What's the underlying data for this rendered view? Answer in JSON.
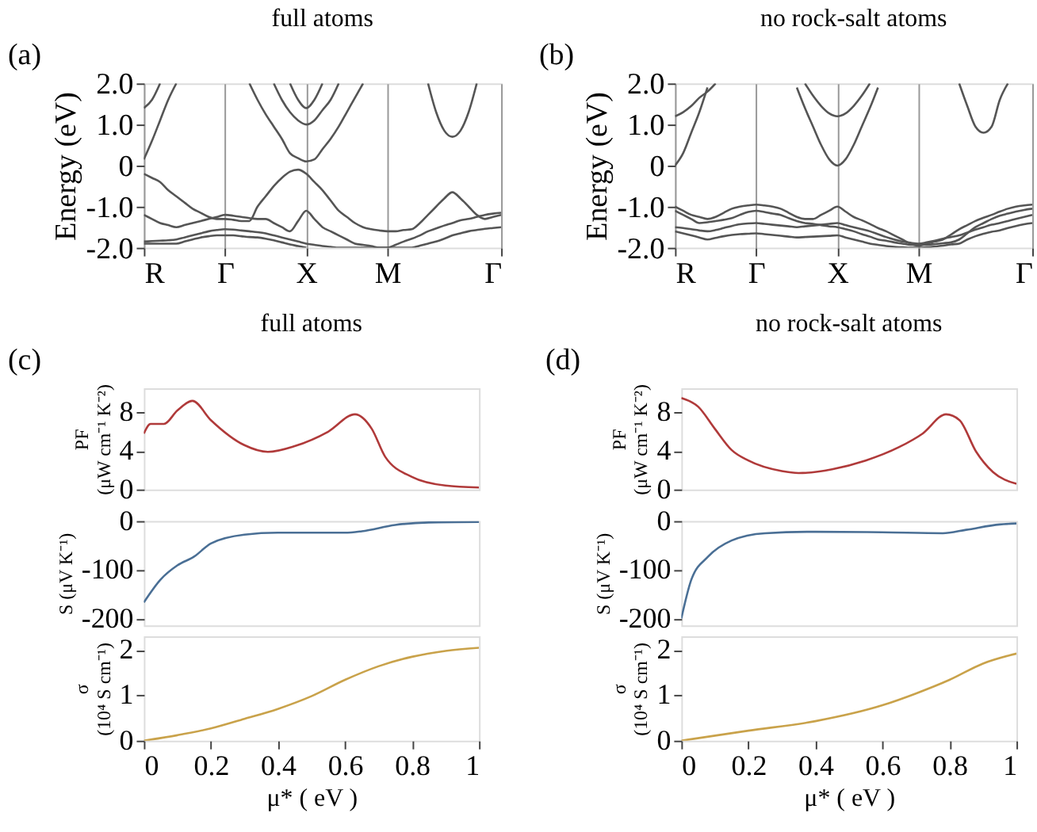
{
  "chart_data": [
    {
      "type": "line",
      "title": "full atoms",
      "ylabel": "Energy (eV)",
      "annotations": [
        "(a)"
      ],
      "grid": "x",
      "categories": [
        "R",
        null,
        null,
        null,
        null,
        null,
        null,
        null,
        null,
        null,
        "Γ",
        null,
        null,
        null,
        null,
        null,
        null,
        null,
        null,
        null,
        "X",
        null,
        null,
        null,
        null,
        null,
        null,
        null,
        null,
        null,
        "M",
        null,
        null,
        null,
        null,
        null,
        null,
        null,
        null,
        null,
        null,
        null,
        null,
        null,
        "Γ"
      ],
      "ylim": [
        -2,
        2
      ],
      "yticks": [
        {
          "value": 2,
          "label": "2.0"
        },
        {
          "value": 1,
          "label": "1.0"
        },
        0,
        {
          "value": -1,
          "label": "-1.0"
        },
        {
          "value": -2,
          "label": "-2.0"
        }
      ],
      "series": [
        {
          "color": "#555555",
          "values": [
            0.15,
            0.6,
            1.1,
            1.6,
            2.0,
            null,
            null,
            null,
            null,
            null,
            null,
            null,
            null,
            null,
            null,
            null,
            null,
            null,
            null,
            null,
            null,
            null,
            null,
            null,
            null,
            null,
            null,
            null,
            null,
            null,
            null,
            null,
            null,
            null,
            null,
            null,
            null,
            null,
            null,
            null,
            null,
            null,
            null,
            null,
            null
          ]
        },
        {
          "color": "#555555",
          "values": [
            1.4,
            1.6,
            2.0,
            null,
            null,
            null,
            null,
            null,
            null,
            null,
            null,
            null,
            null,
            null,
            null,
            null,
            null,
            null,
            null,
            null,
            null,
            null,
            null,
            null,
            null,
            null,
            null,
            null,
            null,
            null,
            null,
            null,
            null,
            null,
            null,
            null,
            null,
            null,
            null,
            null,
            null,
            null,
            null,
            null,
            null
          ]
        },
        {
          "color": "#555555",
          "values": [
            null,
            null,
            null,
            null,
            null,
            null,
            null,
            null,
            null,
            null,
            null,
            null,
            null,
            2.0,
            1.6,
            1.25,
            0.95,
            0.65,
            0.3,
            0.18,
            0.1,
            0.15,
            0.4,
            0.65,
            0.95,
            1.3,
            1.65,
            2.0,
            null,
            null,
            null,
            null,
            null,
            null,
            null,
            null,
            null,
            null,
            null,
            null,
            null,
            null,
            null,
            null,
            null
          ]
        },
        {
          "color": "#555555",
          "values": [
            null,
            null,
            null,
            null,
            null,
            null,
            null,
            null,
            null,
            null,
            null,
            null,
            null,
            null,
            null,
            null,
            2.0,
            1.6,
            1.3,
            1.1,
            1.0,
            1.1,
            1.35,
            1.6,
            2.0,
            null,
            null,
            null,
            null,
            null,
            null,
            null,
            null,
            null,
            null,
            null,
            null,
            null,
            null,
            null,
            null,
            null,
            null,
            null,
            null
          ]
        },
        {
          "color": "#555555",
          "values": [
            null,
            null,
            null,
            null,
            null,
            null,
            null,
            null,
            null,
            null,
            null,
            null,
            null,
            null,
            null,
            null,
            null,
            null,
            2.0,
            1.6,
            1.4,
            1.6,
            2.0,
            null,
            null,
            null,
            null,
            null,
            null,
            null,
            null,
            null,
            null,
            null,
            null,
            null,
            null,
            null,
            null,
            null,
            null,
            null,
            null,
            null,
            null
          ]
        },
        {
          "color": "#555555",
          "values": [
            null,
            null,
            null,
            null,
            null,
            null,
            null,
            null,
            null,
            null,
            null,
            null,
            null,
            null,
            null,
            null,
            null,
            null,
            null,
            null,
            null,
            null,
            null,
            null,
            null,
            null,
            null,
            null,
            null,
            null,
            null,
            null,
            null,
            null,
            null,
            2.0,
            1.3,
            0.85,
            0.7,
            0.85,
            1.3,
            2.0,
            null,
            null,
            null
          ]
        },
        {
          "color": "#555555",
          "values": [
            -0.2,
            -0.3,
            -0.4,
            -0.6,
            -0.75,
            -0.9,
            -1.05,
            -1.15,
            -1.25,
            -1.3,
            -1.3,
            -1.32,
            -1.35,
            -1.35,
            -1.0,
            -0.75,
            -0.5,
            -0.3,
            -0.15,
            -0.1,
            -0.2,
            -0.4,
            -0.6,
            -0.85,
            -1.1,
            -1.25,
            -1.4,
            -1.5,
            -1.55,
            -1.58,
            -1.6,
            -1.6,
            -1.57,
            -1.55,
            -1.4,
            -1.2,
            -1.0,
            -0.8,
            -0.65,
            -0.8,
            -1.0,
            -1.2,
            -1.3,
            -1.25,
            -1.2
          ]
        },
        {
          "color": "#555555",
          "values": [
            -1.2,
            -1.3,
            -1.4,
            -1.45,
            -1.5,
            -1.45,
            -1.4,
            -1.35,
            -1.3,
            -1.25,
            -1.2,
            -1.22,
            -1.25,
            -1.28,
            -1.3,
            -1.3,
            -1.4,
            -1.5,
            -1.6,
            -1.35,
            -1.1,
            -1.3,
            -1.5,
            -1.6,
            -1.7,
            -1.8,
            -1.9,
            -1.93,
            -1.96,
            -2.0,
            -2.0,
            -1.93,
            -1.85,
            -1.78,
            -1.7,
            -1.6,
            -1.53,
            -1.46,
            -1.4,
            -1.33,
            -1.3,
            -1.25,
            -1.2,
            -1.17,
            -1.15
          ]
        },
        {
          "color": "#555555",
          "values": [
            -1.85,
            -1.84,
            -1.83,
            -1.82,
            -1.8,
            -1.75,
            -1.7,
            -1.65,
            -1.6,
            -1.57,
            -1.55,
            -1.56,
            -1.58,
            -1.6,
            -1.62,
            -1.65,
            -1.7,
            -1.75,
            -1.8,
            -1.85,
            -1.9,
            -1.93,
            -1.96,
            -1.98,
            -2.0,
            -2.0,
            -2.0,
            -2.0,
            -2.0,
            -2.0,
            -2.0,
            -2.0,
            -2.0,
            -2.0,
            -1.95,
            -1.9,
            -1.85,
            -1.78,
            -1.7,
            -1.65,
            -1.6,
            -1.57,
            -1.54,
            -1.52,
            -1.5
          ]
        },
        {
          "color": "#555555",
          "values": [
            -1.9,
            -1.9,
            -1.9,
            -1.9,
            -1.9,
            -1.85,
            -1.8,
            -1.75,
            -1.72,
            -1.7,
            -1.7,
            -1.7,
            -1.72,
            -1.74,
            -1.75,
            -1.78,
            -1.82,
            -1.87,
            -1.92,
            -1.96,
            -2.0,
            null,
            null,
            null,
            null,
            null,
            null,
            null,
            null,
            null,
            null,
            null,
            null,
            null,
            null,
            null,
            null,
            null,
            null,
            null,
            null,
            null,
            null,
            null,
            null
          ]
        }
      ]
    },
    {
      "type": "line",
      "title": "no rock-salt atoms",
      "ylabel": "Energy (eV)",
      "annotations": [
        "(b)"
      ],
      "grid": "x",
      "categories": [
        "R",
        null,
        null,
        null,
        null,
        null,
        null,
        null,
        null,
        null,
        "Γ",
        null,
        null,
        null,
        null,
        null,
        null,
        null,
        null,
        null,
        "X",
        null,
        null,
        null,
        null,
        null,
        null,
        null,
        null,
        null,
        "M",
        null,
        null,
        null,
        null,
        null,
        null,
        null,
        null,
        null,
        null,
        null,
        null,
        null,
        "Γ"
      ],
      "ylim": [
        -2,
        2
      ],
      "yticks": [
        {
          "value": 2,
          "label": "2.0"
        },
        {
          "value": 1,
          "label": "1.0"
        },
        0,
        {
          "value": -1,
          "label": "-1.0"
        },
        {
          "value": -2,
          "label": "-2.0"
        }
      ],
      "series": [
        {
          "color": "#555555",
          "values": [
            1.2,
            1.3,
            1.45,
            1.65,
            1.8,
            2.0,
            null,
            null,
            null,
            null,
            null,
            null,
            null,
            null,
            null,
            null,
            null,
            null,
            null,
            null,
            null,
            null,
            null,
            null,
            null,
            null,
            null,
            null,
            null,
            null,
            null,
            null,
            null,
            null,
            null,
            null,
            null,
            null,
            null,
            null,
            null,
            null,
            null,
            null,
            null
          ]
        },
        {
          "color": "#555555",
          "values": [
            0,
            0.3,
            0.8,
            1.3,
            1.9,
            null,
            null,
            null,
            null,
            null,
            null,
            null,
            null,
            null,
            null,
            null,
            null,
            null,
            null,
            null,
            null,
            null,
            null,
            null,
            null,
            null,
            null,
            null,
            null,
            null,
            null,
            null,
            null,
            null,
            null,
            null,
            null,
            null,
            null,
            null,
            null,
            null,
            null,
            null,
            null
          ]
        },
        {
          "color": "#555555",
          "values": [
            null,
            null,
            null,
            null,
            null,
            null,
            null,
            null,
            null,
            null,
            null,
            null,
            null,
            null,
            null,
            1.9,
            1.4,
            0.95,
            0.5,
            0.15,
            0.0,
            0.15,
            0.5,
            0.95,
            1.4,
            1.9,
            null,
            null,
            null,
            null,
            null,
            null,
            null,
            null,
            null,
            null,
            null,
            null,
            null,
            null,
            null,
            null,
            null,
            null,
            null
          ]
        },
        {
          "color": "#555555",
          "values": [
            null,
            null,
            null,
            null,
            null,
            null,
            null,
            null,
            null,
            null,
            null,
            null,
            null,
            null,
            null,
            null,
            2.0,
            1.7,
            1.45,
            1.27,
            1.2,
            1.27,
            1.45,
            1.7,
            2.0,
            null,
            null,
            null,
            null,
            null,
            null,
            null,
            null,
            null,
            null,
            null,
            null,
            null,
            null,
            null,
            null,
            null,
            null,
            null,
            null
          ]
        },
        {
          "color": "#555555",
          "values": [
            null,
            null,
            null,
            null,
            null,
            null,
            null,
            null,
            null,
            null,
            null,
            null,
            null,
            null,
            null,
            null,
            null,
            null,
            null,
            null,
            null,
            null,
            null,
            null,
            null,
            null,
            null,
            null,
            null,
            null,
            null,
            null,
            null,
            null,
            null,
            2.0,
            1.45,
            0.95,
            0.8,
            0.95,
            1.6,
            2.0,
            null,
            null,
            null
          ]
        },
        {
          "color": "#555555",
          "values": [
            -1.0,
            -1.1,
            -1.2,
            -1.25,
            -1.3,
            -1.25,
            -1.15,
            -1.05,
            -1.0,
            -0.97,
            -0.95,
            -0.97,
            -1.0,
            -1.05,
            -1.15,
            -1.25,
            -1.3,
            -1.3,
            -1.2,
            -1.1,
            -1.0,
            -1.12,
            -1.25,
            -1.33,
            -1.42,
            -1.52,
            -1.6,
            -1.7,
            -1.8,
            -1.9,
            -1.95,
            -1.9,
            -1.85,
            -1.8,
            -1.68,
            -1.55,
            -1.45,
            -1.35,
            -1.27,
            -1.2,
            -1.12,
            -1.05,
            -1.0,
            -0.97,
            -0.95
          ]
        },
        {
          "color": "#555555",
          "values": [
            -1.1,
            -1.2,
            -1.3,
            -1.4,
            -1.38,
            -1.35,
            -1.32,
            -1.28,
            -1.2,
            -1.13,
            -1.1,
            -1.13,
            -1.17,
            -1.2,
            -1.28,
            -1.35,
            -1.4,
            -1.42,
            -1.45,
            -1.48,
            -1.5,
            -1.55,
            -1.6,
            -1.67,
            -1.73,
            -1.8,
            -1.83,
            -1.87,
            -1.9,
            -1.93,
            -1.93,
            -1.93,
            -1.91,
            -1.89,
            -1.87,
            -1.8,
            -1.65,
            -1.5,
            -1.4,
            -1.3,
            -1.22,
            -1.17,
            -1.12,
            -1.08,
            -1.05
          ]
        },
        {
          "color": "#555555",
          "values": [
            -1.5,
            -1.52,
            -1.55,
            -1.58,
            -1.6,
            -1.57,
            -1.52,
            -1.47,
            -1.43,
            -1.41,
            -1.4,
            -1.42,
            -1.44,
            -1.46,
            -1.48,
            -1.5,
            -1.48,
            -1.46,
            -1.44,
            -1.42,
            -1.4,
            -1.45,
            -1.5,
            -1.55,
            -1.6,
            -1.67,
            -1.74,
            -1.8,
            -1.85,
            -1.88,
            -1.9,
            -1.87,
            -1.83,
            -1.78,
            -1.74,
            -1.7,
            -1.63,
            -1.56,
            -1.5,
            -1.44,
            -1.4,
            -1.35,
            -1.3,
            -1.25,
            -1.2
          ]
        },
        {
          "color": "#555555",
          "values": [
            -1.6,
            -1.65,
            -1.7,
            -1.75,
            -1.8,
            -1.76,
            -1.72,
            -1.69,
            -1.67,
            -1.66,
            -1.65,
            -1.67,
            -1.69,
            -1.71,
            -1.73,
            -1.75,
            -1.74,
            -1.73,
            -1.72,
            -1.71,
            -1.7,
            -1.75,
            -1.8,
            -1.85,
            -1.9,
            -1.93,
            -1.96,
            -1.98,
            -1.99,
            -2.0,
            -2.0,
            -1.99,
            -1.97,
            -1.95,
            -1.92,
            -1.9,
            -1.8,
            -1.72,
            -1.66,
            -1.61,
            -1.58,
            -1.52,
            -1.47,
            -1.43,
            -1.4
          ]
        }
      ]
    },
    {
      "type": "line",
      "title": "full atoms",
      "ylabel": "PF\n(μW cm⁻¹ K⁻²)",
      "annotations": [
        "(c)"
      ],
      "tick_labels": "y",
      "xlim": [
        0,
        1
      ],
      "ylim": [
        0,
        10.5
      ],
      "yticks": [
        0,
        4,
        8
      ],
      "series": [
        {
          "color": "#b03a3a",
          "x": [
            0,
            0.02,
            0.06,
            0.1,
            0.145,
            0.2,
            0.3,
            0.37,
            0.45,
            0.55,
            0.63,
            0.68,
            0.72,
            0.8,
            0.9,
            1.0
          ],
          "values": [
            5.8,
            6.8,
            6.8,
            8.2,
            9.2,
            7.2,
            4.6,
            3.9,
            4.5,
            6.0,
            7.8,
            6.3,
            3.4,
            1.3,
            0.4,
            0.2
          ]
        }
      ]
    },
    {
      "type": "line",
      "ylabel": "S (μV K⁻¹)",
      "tick_labels": "y",
      "xlim": [
        0,
        1
      ],
      "ylim": [
        -214,
        0
      ],
      "yticks": [
        -200,
        -100,
        0
      ],
      "series": [
        {
          "color": "#4a6f95",
          "x": [
            0,
            0.05,
            0.1,
            0.15,
            0.2,
            0.3,
            0.4,
            0.6,
            0.65,
            0.75,
            0.85,
            1.0
          ],
          "values": [
            -167,
            -120,
            -91,
            -73,
            -46,
            -28,
            -24,
            -24,
            -21,
            -8,
            -3,
            -2
          ]
        }
      ]
    },
    {
      "type": "line",
      "ylabel": "σ\n(10⁴ S cm⁻¹)",
      "xlabel": "μ* ( eV )",
      "xlim": [
        0,
        1
      ],
      "xticks": [
        0,
        0.2,
        0.4,
        0.6,
        0.8,
        1
      ],
      "ylim": [
        0,
        2.3
      ],
      "yticks": [
        0,
        1,
        2
      ],
      "series": [
        {
          "color": "#c9a24a",
          "x": [
            0,
            0.1,
            0.2,
            0.3,
            0.4,
            0.5,
            0.6,
            0.7,
            0.8,
            0.9,
            1.0
          ],
          "values": [
            0,
            0.12,
            0.27,
            0.48,
            0.7,
            0.98,
            1.34,
            1.64,
            1.85,
            1.98,
            2.05
          ]
        }
      ]
    },
    {
      "type": "line",
      "title": "no rock-salt atoms",
      "ylabel": "PF\n(μW cm⁻¹ K⁻²)",
      "annotations": [
        "(d)"
      ],
      "tick_labels": "y",
      "xlim": [
        0,
        1
      ],
      "ylim": [
        0,
        10.5
      ],
      "yticks": [
        0,
        4,
        8
      ],
      "series": [
        {
          "color": "#b03a3a",
          "x": [
            0,
            0.05,
            0.1,
            0.15,
            0.2,
            0.3,
            0.35,
            0.45,
            0.55,
            0.65,
            0.72,
            0.79,
            0.83,
            0.88,
            0.93,
            1.0
          ],
          "values": [
            9.5,
            8.6,
            6.3,
            4.1,
            3.0,
            1.9,
            1.7,
            2.1,
            3.0,
            4.4,
            5.8,
            7.8,
            7.2,
            3.9,
            1.8,
            0.6
          ]
        }
      ]
    },
    {
      "type": "line",
      "ylabel": "S (μV K⁻¹)",
      "tick_labels": "y",
      "xlim": [
        0,
        1
      ],
      "ylim": [
        -214,
        0
      ],
      "yticks": [
        -200,
        -100,
        0
      ],
      "series": [
        {
          "color": "#4a6f95",
          "x": [
            0,
            0.03,
            0.08,
            0.15,
            0.25,
            0.4,
            0.6,
            0.78,
            0.85,
            0.95,
            1.0
          ],
          "values": [
            -200,
            -120,
            -73,
            -40,
            -25,
            -22,
            -23,
            -25,
            -18,
            -7,
            -5
          ]
        }
      ]
    },
    {
      "type": "line",
      "ylabel": "σ\n(10⁴ S cm⁻¹)",
      "xlabel": "μ* ( eV )",
      "xlim": [
        0,
        1
      ],
      "xticks": [
        0,
        0.2,
        0.4,
        0.6,
        0.8,
        1
      ],
      "ylim": [
        0,
        2.3
      ],
      "yticks": [
        0,
        1,
        2
      ],
      "series": [
        {
          "color": "#c9a24a",
          "x": [
            0,
            0.2,
            0.4,
            0.6,
            0.7,
            0.8,
            0.9,
            1.0
          ],
          "values": [
            0,
            0.22,
            0.43,
            0.78,
            1.04,
            1.34,
            1.7,
            1.92
          ]
        }
      ]
    }
  ]
}
